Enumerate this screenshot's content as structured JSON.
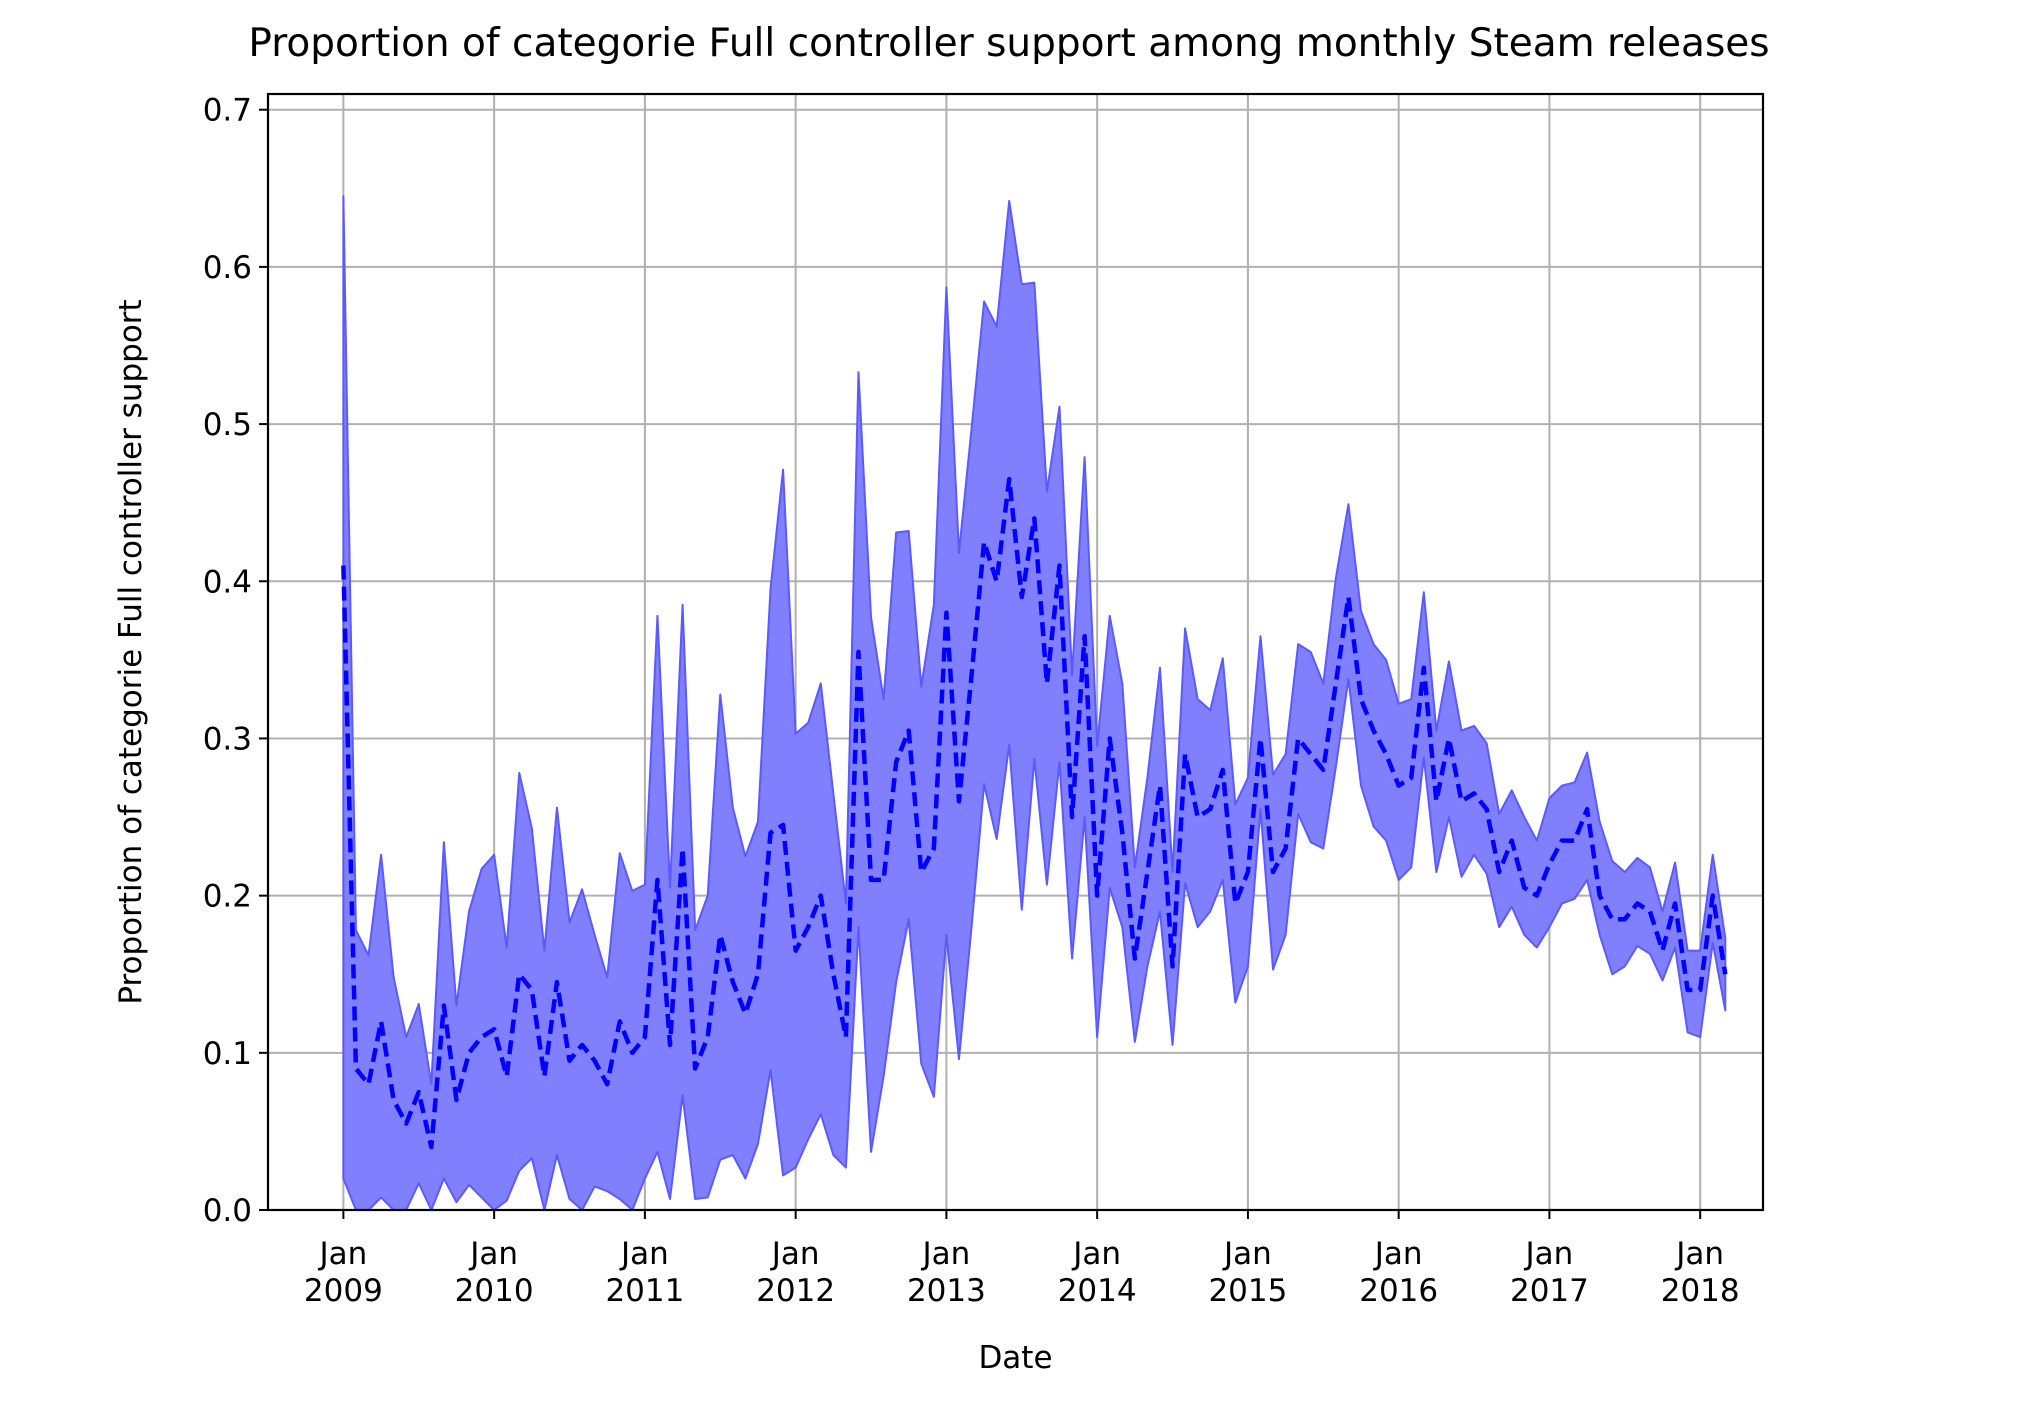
{
  "chart_data": {
    "type": "area",
    "title": "Proportion of categorie Full controller support among monthly Steam releases",
    "xlabel": "Date",
    "ylabel": "Proportion of categorie Full controller support",
    "xlim": [
      "2008-07-01",
      "2018-06-01"
    ],
    "ylim": [
      0,
      0.71
    ],
    "grid": true,
    "legend": "none",
    "x_ticks": [
      {
        "date": "2009-01",
        "month": "Jan",
        "year": "2009"
      },
      {
        "date": "2010-01",
        "month": "Jan",
        "year": "2010"
      },
      {
        "date": "2011-01",
        "month": "Jan",
        "year": "2011"
      },
      {
        "date": "2012-01",
        "month": "Jan",
        "year": "2012"
      },
      {
        "date": "2013-01",
        "month": "Jan",
        "year": "2013"
      },
      {
        "date": "2014-01",
        "month": "Jan",
        "year": "2014"
      },
      {
        "date": "2015-01",
        "month": "Jan",
        "year": "2015"
      },
      {
        "date": "2016-01",
        "month": "Jan",
        "year": "2016"
      },
      {
        "date": "2017-01",
        "month": "Jan",
        "year": "2017"
      },
      {
        "date": "2018-01",
        "month": "Jan",
        "year": "2018"
      }
    ],
    "y_ticks": [
      "0.0",
      "0.1",
      "0.2",
      "0.3",
      "0.4",
      "0.5",
      "0.6",
      "0.7"
    ],
    "colors": {
      "band_fill": "#8080ff",
      "band_edge": "#5a5aff",
      "mean_line": "#0000ff",
      "grid": "#b0b0b0"
    },
    "x": [
      "2009-01",
      "2009-02",
      "2009-03",
      "2009-04",
      "2009-05",
      "2009-06",
      "2009-07",
      "2009-08",
      "2009-09",
      "2009-10",
      "2009-11",
      "2009-12",
      "2010-01",
      "2010-02",
      "2010-03",
      "2010-04",
      "2010-05",
      "2010-06",
      "2010-07",
      "2010-08",
      "2010-09",
      "2010-10",
      "2010-11",
      "2010-12",
      "2011-01",
      "2011-02",
      "2011-03",
      "2011-04",
      "2011-05",
      "2011-06",
      "2011-07",
      "2011-08",
      "2011-09",
      "2011-10",
      "2011-11",
      "2011-12",
      "2012-01",
      "2012-02",
      "2012-03",
      "2012-04",
      "2012-05",
      "2012-06",
      "2012-07",
      "2012-08",
      "2012-09",
      "2012-10",
      "2012-11",
      "2012-12",
      "2013-01",
      "2013-02",
      "2013-03",
      "2013-04",
      "2013-05",
      "2013-06",
      "2013-07",
      "2013-08",
      "2013-09",
      "2013-10",
      "2013-11",
      "2013-12",
      "2014-01",
      "2014-02",
      "2014-03",
      "2014-04",
      "2014-05",
      "2014-06",
      "2014-07",
      "2014-08",
      "2014-09",
      "2014-10",
      "2014-11",
      "2014-12",
      "2015-01",
      "2015-02",
      "2015-03",
      "2015-04",
      "2015-05",
      "2015-06",
      "2015-07",
      "2015-08",
      "2015-09",
      "2015-10",
      "2015-11",
      "2015-12",
      "2016-01",
      "2016-02",
      "2016-03",
      "2016-04",
      "2016-05",
      "2016-06",
      "2016-07",
      "2016-08",
      "2016-09",
      "2016-10",
      "2016-11",
      "2016-12",
      "2017-01",
      "2017-02",
      "2017-03",
      "2017-04",
      "2017-05",
      "2017-06",
      "2017-07",
      "2017-08",
      "2017-09",
      "2017-10",
      "2017-11",
      "2017-12",
      "2018-01",
      "2018-02",
      "2018-03"
    ],
    "series": [
      {
        "values": [
          0.41,
          0.09,
          0.08,
          0.12,
          0.07,
          0.055,
          0.075,
          0.04,
          0.13,
          0.07,
          0.1,
          0.11,
          0.115,
          0.085,
          0.15,
          0.14,
          0.085,
          0.145,
          0.095,
          0.105,
          0.095,
          0.08,
          0.12,
          0.1,
          0.11,
          0.21,
          0.105,
          0.23,
          0.09,
          0.11,
          0.175,
          0.145,
          0.125,
          0.15,
          0.24,
          0.245,
          0.165,
          0.18,
          0.2,
          0.15,
          0.11,
          0.355,
          0.21,
          0.21,
          0.285,
          0.305,
          0.215,
          0.23,
          0.38,
          0.26,
          0.34,
          0.425,
          0.4,
          0.465,
          0.39,
          0.44,
          0.335,
          0.41,
          0.25,
          0.365,
          0.2,
          0.3,
          0.24,
          0.16,
          0.215,
          0.27,
          0.155,
          0.29,
          0.25,
          0.255,
          0.28,
          0.195,
          0.215,
          0.3,
          0.215,
          0.23,
          0.3,
          0.29,
          0.28,
          0.335,
          0.39,
          0.325,
          0.305,
          0.29,
          0.27,
          0.275,
          0.345,
          0.26,
          0.3,
          0.26,
          0.265,
          0.255,
          0.215,
          0.235,
          0.205,
          0.2,
          0.22,
          0.235,
          0.235,
          0.255,
          0.2,
          0.185,
          0.185,
          0.195,
          0.19,
          0.165,
          0.195,
          0.14,
          0.14,
          0.2,
          0.15
        ],
        "lower": [
          0.02,
          0.0,
          0.0,
          0.008,
          0.0,
          0.0,
          0.017,
          0.0,
          0.02,
          0.005,
          0.016,
          0.008,
          0.0,
          0.006,
          0.025,
          0.033,
          0.0,
          0.035,
          0.007,
          0.0,
          0.015,
          0.012,
          0.007,
          0.0,
          0.02,
          0.037,
          0.007,
          0.073,
          0.007,
          0.008,
          0.032,
          0.035,
          0.02,
          0.042,
          0.089,
          0.022,
          0.027,
          0.045,
          0.061,
          0.035,
          0.027,
          0.18,
          0.037,
          0.085,
          0.145,
          0.185,
          0.093,
          0.072,
          0.175,
          0.096,
          0.18,
          0.271,
          0.236,
          0.296,
          0.191,
          0.287,
          0.207,
          0.285,
          0.16,
          0.25,
          0.11,
          0.205,
          0.18,
          0.107,
          0.155,
          0.19,
          0.105,
          0.208,
          0.18,
          0.19,
          0.21,
          0.132,
          0.155,
          0.255,
          0.153,
          0.175,
          0.252,
          0.234,
          0.23,
          0.282,
          0.338,
          0.27,
          0.244,
          0.235,
          0.21,
          0.218,
          0.288,
          0.215,
          0.25,
          0.212,
          0.226,
          0.214,
          0.18,
          0.193,
          0.175,
          0.167,
          0.18,
          0.195,
          0.198,
          0.21,
          0.175,
          0.15,
          0.155,
          0.168,
          0.163,
          0.146,
          0.167,
          0.113,
          0.11,
          0.17,
          0.127
        ],
        "upper": [
          0.645,
          0.178,
          0.162,
          0.226,
          0.148,
          0.11,
          0.131,
          0.08,
          0.234,
          0.13,
          0.19,
          0.217,
          0.226,
          0.167,
          0.278,
          0.243,
          0.165,
          0.256,
          0.183,
          0.204,
          0.175,
          0.148,
          0.227,
          0.203,
          0.207,
          0.378,
          0.205,
          0.385,
          0.178,
          0.2,
          0.328,
          0.256,
          0.225,
          0.247,
          0.395,
          0.471,
          0.303,
          0.31,
          0.335,
          0.265,
          0.195,
          0.533,
          0.377,
          0.325,
          0.431,
          0.432,
          0.333,
          0.385,
          0.587,
          0.418,
          0.497,
          0.578,
          0.562,
          0.642,
          0.589,
          0.59,
          0.457,
          0.511,
          0.34,
          0.479,
          0.295,
          0.378,
          0.335,
          0.218,
          0.275,
          0.345,
          0.215,
          0.37,
          0.325,
          0.318,
          0.351,
          0.258,
          0.275,
          0.365,
          0.277,
          0.29,
          0.36,
          0.355,
          0.335,
          0.402,
          0.449,
          0.381,
          0.36,
          0.35,
          0.322,
          0.325,
          0.393,
          0.305,
          0.349,
          0.305,
          0.308,
          0.297,
          0.252,
          0.267,
          0.25,
          0.235,
          0.262,
          0.27,
          0.272,
          0.291,
          0.247,
          0.222,
          0.215,
          0.224,
          0.218,
          0.19,
          0.221,
          0.165,
          0.165,
          0.226,
          0.173
        ]
      }
    ]
  }
}
